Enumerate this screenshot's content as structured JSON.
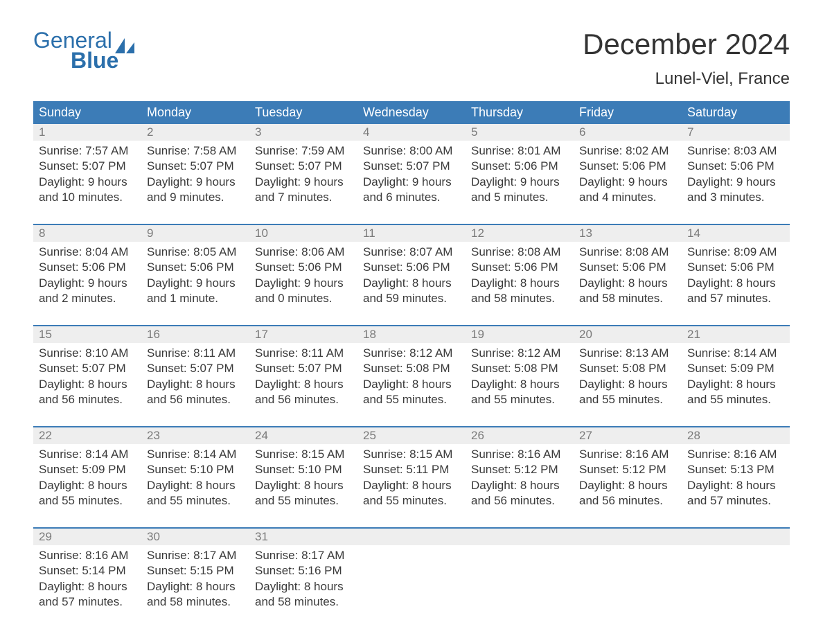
{
  "logo": {
    "general": "General",
    "blue": "Blue"
  },
  "title": "December 2024",
  "location": "Lunel-Viel, France",
  "colors": {
    "header_bg": "#3c7cb7",
    "header_text": "#ffffff",
    "daynum_bg": "#eeeeee",
    "daynum_text": "#7a7a7a",
    "body_text": "#3a3a3a",
    "logo_color": "#2b6fab",
    "week_border": "#3c7cb7",
    "background": "#ffffff"
  },
  "typography": {
    "title_fontsize": 42,
    "location_fontsize": 24,
    "weekday_fontsize": 18,
    "cell_fontsize": 17
  },
  "layout": {
    "columns": 7,
    "rows": 5
  },
  "weekdays": [
    "Sunday",
    "Monday",
    "Tuesday",
    "Wednesday",
    "Thursday",
    "Friday",
    "Saturday"
  ],
  "weeks": [
    [
      {
        "num": "1",
        "sunrise": "Sunrise: 7:57 AM",
        "sunset": "Sunset: 5:07 PM",
        "dl1": "Daylight: 9 hours",
        "dl2": "and 10 minutes."
      },
      {
        "num": "2",
        "sunrise": "Sunrise: 7:58 AM",
        "sunset": "Sunset: 5:07 PM",
        "dl1": "Daylight: 9 hours",
        "dl2": "and 9 minutes."
      },
      {
        "num": "3",
        "sunrise": "Sunrise: 7:59 AM",
        "sunset": "Sunset: 5:07 PM",
        "dl1": "Daylight: 9 hours",
        "dl2": "and 7 minutes."
      },
      {
        "num": "4",
        "sunrise": "Sunrise: 8:00 AM",
        "sunset": "Sunset: 5:07 PM",
        "dl1": "Daylight: 9 hours",
        "dl2": "and 6 minutes."
      },
      {
        "num": "5",
        "sunrise": "Sunrise: 8:01 AM",
        "sunset": "Sunset: 5:06 PM",
        "dl1": "Daylight: 9 hours",
        "dl2": "and 5 minutes."
      },
      {
        "num": "6",
        "sunrise": "Sunrise: 8:02 AM",
        "sunset": "Sunset: 5:06 PM",
        "dl1": "Daylight: 9 hours",
        "dl2": "and 4 minutes."
      },
      {
        "num": "7",
        "sunrise": "Sunrise: 8:03 AM",
        "sunset": "Sunset: 5:06 PM",
        "dl1": "Daylight: 9 hours",
        "dl2": "and 3 minutes."
      }
    ],
    [
      {
        "num": "8",
        "sunrise": "Sunrise: 8:04 AM",
        "sunset": "Sunset: 5:06 PM",
        "dl1": "Daylight: 9 hours",
        "dl2": "and 2 minutes."
      },
      {
        "num": "9",
        "sunrise": "Sunrise: 8:05 AM",
        "sunset": "Sunset: 5:06 PM",
        "dl1": "Daylight: 9 hours",
        "dl2": "and 1 minute."
      },
      {
        "num": "10",
        "sunrise": "Sunrise: 8:06 AM",
        "sunset": "Sunset: 5:06 PM",
        "dl1": "Daylight: 9 hours",
        "dl2": "and 0 minutes."
      },
      {
        "num": "11",
        "sunrise": "Sunrise: 8:07 AM",
        "sunset": "Sunset: 5:06 PM",
        "dl1": "Daylight: 8 hours",
        "dl2": "and 59 minutes."
      },
      {
        "num": "12",
        "sunrise": "Sunrise: 8:08 AM",
        "sunset": "Sunset: 5:06 PM",
        "dl1": "Daylight: 8 hours",
        "dl2": "and 58 minutes."
      },
      {
        "num": "13",
        "sunrise": "Sunrise: 8:08 AM",
        "sunset": "Sunset: 5:06 PM",
        "dl1": "Daylight: 8 hours",
        "dl2": "and 58 minutes."
      },
      {
        "num": "14",
        "sunrise": "Sunrise: 8:09 AM",
        "sunset": "Sunset: 5:06 PM",
        "dl1": "Daylight: 8 hours",
        "dl2": "and 57 minutes."
      }
    ],
    [
      {
        "num": "15",
        "sunrise": "Sunrise: 8:10 AM",
        "sunset": "Sunset: 5:07 PM",
        "dl1": "Daylight: 8 hours",
        "dl2": "and 56 minutes."
      },
      {
        "num": "16",
        "sunrise": "Sunrise: 8:11 AM",
        "sunset": "Sunset: 5:07 PM",
        "dl1": "Daylight: 8 hours",
        "dl2": "and 56 minutes."
      },
      {
        "num": "17",
        "sunrise": "Sunrise: 8:11 AM",
        "sunset": "Sunset: 5:07 PM",
        "dl1": "Daylight: 8 hours",
        "dl2": "and 56 minutes."
      },
      {
        "num": "18",
        "sunrise": "Sunrise: 8:12 AM",
        "sunset": "Sunset: 5:08 PM",
        "dl1": "Daylight: 8 hours",
        "dl2": "and 55 minutes."
      },
      {
        "num": "19",
        "sunrise": "Sunrise: 8:12 AM",
        "sunset": "Sunset: 5:08 PM",
        "dl1": "Daylight: 8 hours",
        "dl2": "and 55 minutes."
      },
      {
        "num": "20",
        "sunrise": "Sunrise: 8:13 AM",
        "sunset": "Sunset: 5:08 PM",
        "dl1": "Daylight: 8 hours",
        "dl2": "and 55 minutes."
      },
      {
        "num": "21",
        "sunrise": "Sunrise: 8:14 AM",
        "sunset": "Sunset: 5:09 PM",
        "dl1": "Daylight: 8 hours",
        "dl2": "and 55 minutes."
      }
    ],
    [
      {
        "num": "22",
        "sunrise": "Sunrise: 8:14 AM",
        "sunset": "Sunset: 5:09 PM",
        "dl1": "Daylight: 8 hours",
        "dl2": "and 55 minutes."
      },
      {
        "num": "23",
        "sunrise": "Sunrise: 8:14 AM",
        "sunset": "Sunset: 5:10 PM",
        "dl1": "Daylight: 8 hours",
        "dl2": "and 55 minutes."
      },
      {
        "num": "24",
        "sunrise": "Sunrise: 8:15 AM",
        "sunset": "Sunset: 5:10 PM",
        "dl1": "Daylight: 8 hours",
        "dl2": "and 55 minutes."
      },
      {
        "num": "25",
        "sunrise": "Sunrise: 8:15 AM",
        "sunset": "Sunset: 5:11 PM",
        "dl1": "Daylight: 8 hours",
        "dl2": "and 55 minutes."
      },
      {
        "num": "26",
        "sunrise": "Sunrise: 8:16 AM",
        "sunset": "Sunset: 5:12 PM",
        "dl1": "Daylight: 8 hours",
        "dl2": "and 56 minutes."
      },
      {
        "num": "27",
        "sunrise": "Sunrise: 8:16 AM",
        "sunset": "Sunset: 5:12 PM",
        "dl1": "Daylight: 8 hours",
        "dl2": "and 56 minutes."
      },
      {
        "num": "28",
        "sunrise": "Sunrise: 8:16 AM",
        "sunset": "Sunset: 5:13 PM",
        "dl1": "Daylight: 8 hours",
        "dl2": "and 57 minutes."
      }
    ],
    [
      {
        "num": "29",
        "sunrise": "Sunrise: 8:16 AM",
        "sunset": "Sunset: 5:14 PM",
        "dl1": "Daylight: 8 hours",
        "dl2": "and 57 minutes."
      },
      {
        "num": "30",
        "sunrise": "Sunrise: 8:17 AM",
        "sunset": "Sunset: 5:15 PM",
        "dl1": "Daylight: 8 hours",
        "dl2": "and 58 minutes."
      },
      {
        "num": "31",
        "sunrise": "Sunrise: 8:17 AM",
        "sunset": "Sunset: 5:16 PM",
        "dl1": "Daylight: 8 hours",
        "dl2": "and 58 minutes."
      },
      {
        "num": "",
        "sunrise": "",
        "sunset": "",
        "dl1": "",
        "dl2": ""
      },
      {
        "num": "",
        "sunrise": "",
        "sunset": "",
        "dl1": "",
        "dl2": ""
      },
      {
        "num": "",
        "sunrise": "",
        "sunset": "",
        "dl1": "",
        "dl2": ""
      },
      {
        "num": "",
        "sunrise": "",
        "sunset": "",
        "dl1": "",
        "dl2": ""
      }
    ]
  ]
}
